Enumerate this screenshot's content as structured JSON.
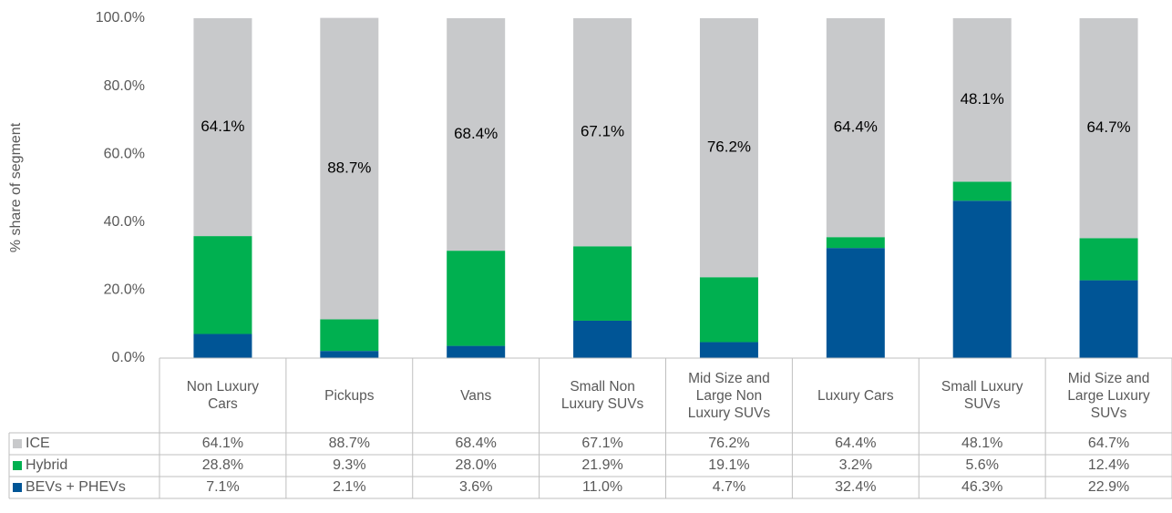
{
  "chart_data": {
    "type": "stacked_bar",
    "y_label": "% share of segment",
    "categories": [
      "Non Luxury Cars",
      "Pickups",
      "Vans",
      "Small Non Luxury SUVs",
      "Mid Size and Large Non Luxury SUVs",
      "Luxury Cars",
      "Small Luxury SUVs",
      "Mid Size and Large Luxury SUVs"
    ],
    "series": [
      {
        "name": "BEVs + PHEVs",
        "color": "#005596",
        "values": [
          7.1,
          2.1,
          3.6,
          11.0,
          4.7,
          32.4,
          46.3,
          22.9
        ],
        "value_labels": [
          "7.1%",
          "2.1%",
          "3.6%",
          "11.0%",
          "4.7%",
          "32.4%",
          "46.3%",
          "22.9%"
        ]
      },
      {
        "name": "Hybrid",
        "color": "#00b050",
        "values": [
          28.8,
          9.3,
          28.0,
          21.9,
          19.1,
          3.2,
          5.6,
          12.4
        ],
        "value_labels": [
          "28.8%",
          "9.3%",
          "28.0%",
          "21.9%",
          "19.1%",
          "3.2%",
          "5.6%",
          "12.4%"
        ]
      },
      {
        "name": "ICE",
        "color": "#c8c9cb",
        "values": [
          64.1,
          88.7,
          68.4,
          67.1,
          76.2,
          64.4,
          48.1,
          64.7
        ],
        "value_labels": [
          "64.1%",
          "88.7%",
          "68.4%",
          "67.1%",
          "76.2%",
          "64.4%",
          "48.1%",
          "64.7%"
        ],
        "show_data_labels": true
      }
    ],
    "ylim": [
      0,
      100
    ],
    "yticks": [
      {
        "value": 0,
        "label": "0.0%"
      },
      {
        "value": 20,
        "label": "20.0%"
      },
      {
        "value": 40,
        "label": "40.0%"
      },
      {
        "value": 60,
        "label": "60.0%"
      },
      {
        "value": 80,
        "label": "80.0%"
      },
      {
        "value": 100,
        "label": "100.0%"
      }
    ],
    "grid": false,
    "data_table": true
  }
}
